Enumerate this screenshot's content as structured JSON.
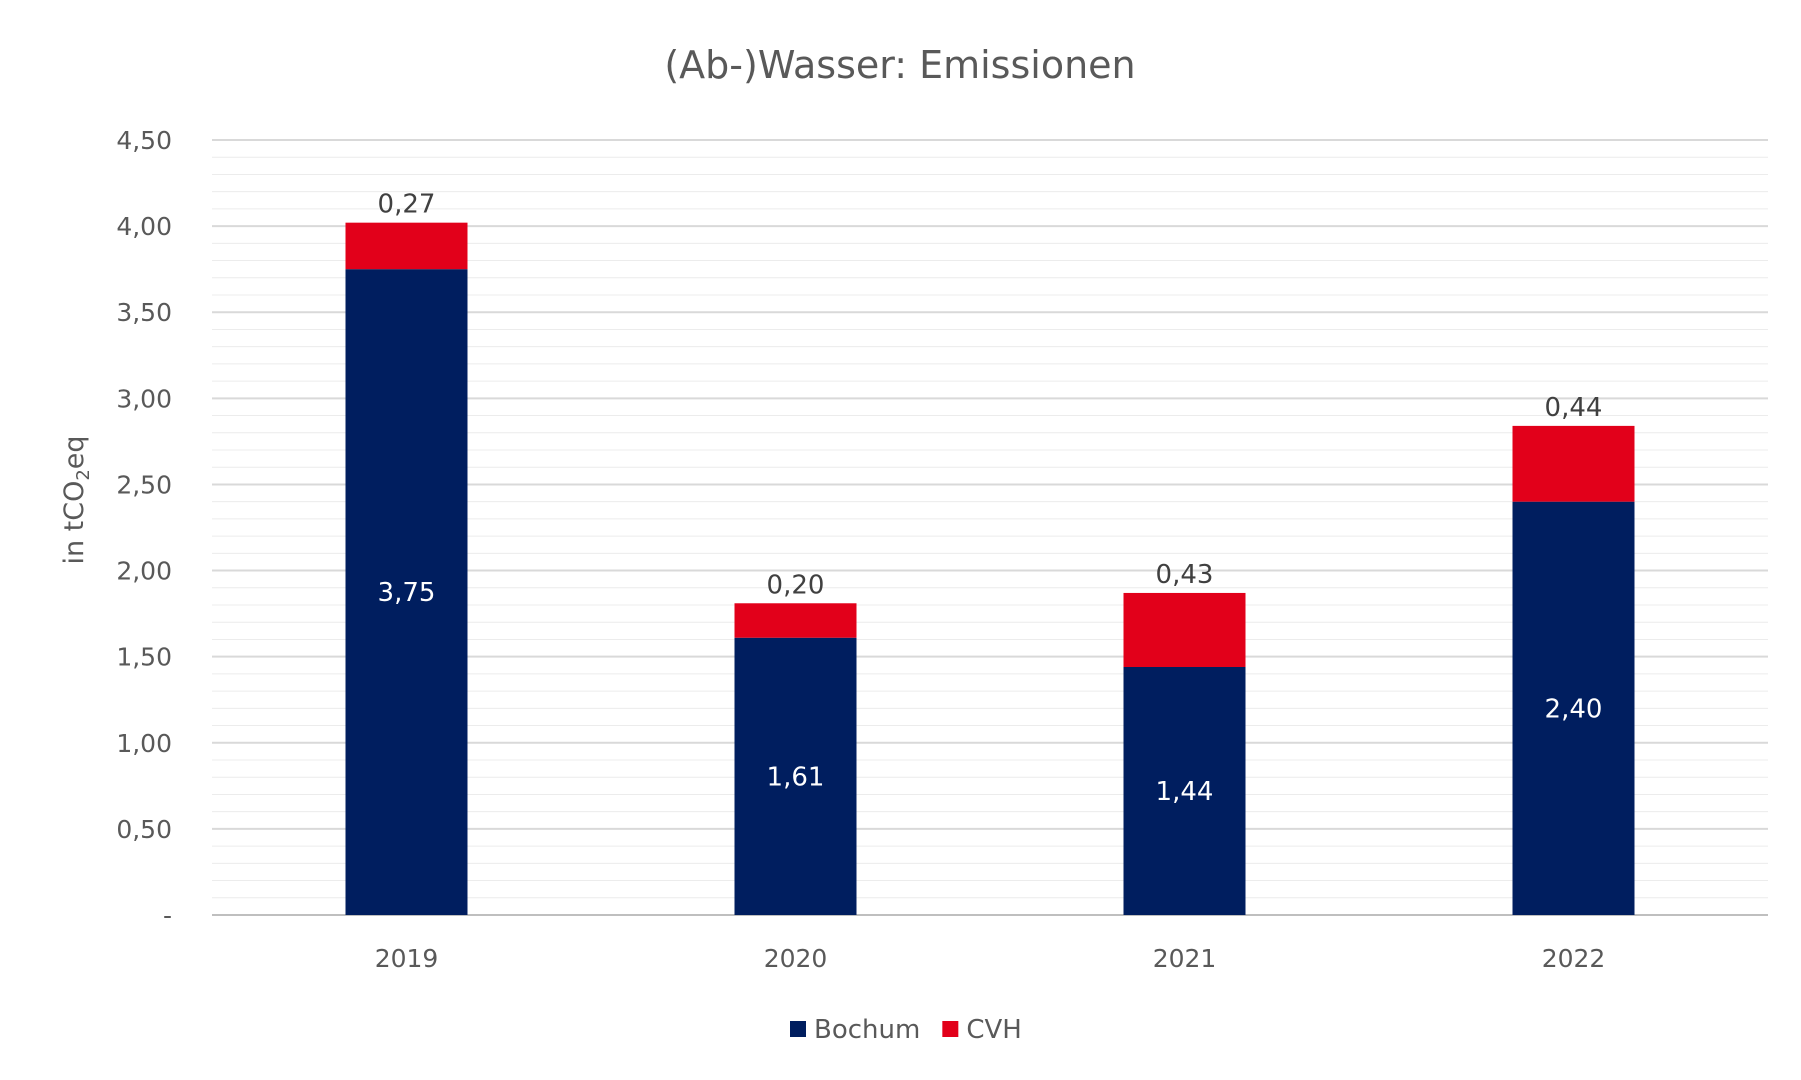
{
  "chart_data": {
    "type": "bar",
    "stacked": true,
    "title": "(Ab-)Wasser: Emissionen",
    "ylabel_prefix": "in tCO",
    "ylabel_sub": "2",
    "ylabel_suffix": "eq",
    "categories": [
      "2019",
      "2020",
      "2021",
      "2022"
    ],
    "ylim": [
      0,
      4.5
    ],
    "yticks": [
      0,
      0.5,
      1.0,
      1.5,
      2.0,
      2.5,
      3.0,
      3.5,
      4.0,
      4.5
    ],
    "ytick_labels": [
      "-",
      "0,50",
      "1,00",
      "1,50",
      "2,00",
      "2,50",
      "3,00",
      "3,50",
      "4,00",
      "4,50"
    ],
    "minor_grid_step": 0.1,
    "series": [
      {
        "name": "Bochum",
        "color": "#001E5F",
        "values": [
          3.75,
          1.61,
          1.44,
          2.4
        ],
        "labels": [
          "3,75",
          "1,61",
          "1,44",
          "2,40"
        ]
      },
      {
        "name": "CVH",
        "color": "#E2001A",
        "values": [
          0.27,
          0.2,
          0.43,
          0.44
        ],
        "labels": [
          "0,27",
          "0,20",
          "0,43",
          "0,44"
        ]
      }
    ],
    "legend": "bottom"
  }
}
